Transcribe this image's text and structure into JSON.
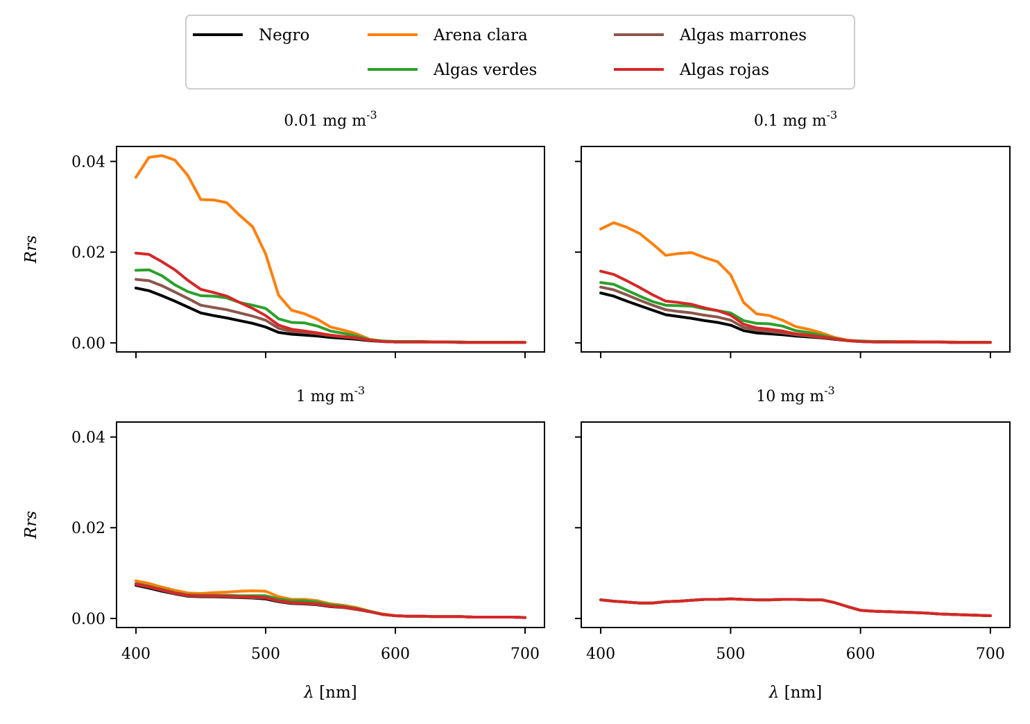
{
  "legend": {
    "entries": [
      {
        "name": "Negro",
        "color": "#000000"
      },
      {
        "name": "Arena clara",
        "color": "#ff7f0e"
      },
      {
        "name": "Algas marrones",
        "color": "#8c564b"
      },
      {
        "name": "Algas verdes",
        "color": "#2ca02c"
      },
      {
        "name": "Algas rojas",
        "color": "#d62728"
      }
    ]
  },
  "chart_data": [
    {
      "type": "line",
      "title": "0.01 mg m^-3",
      "xlabel": "",
      "ylabel": "Rrs",
      "xlim": [
        385,
        715
      ],
      "ylim": [
        -0.002,
        0.0433
      ],
      "xticks": [
        400,
        500,
        600,
        700
      ],
      "yticks": [
        "0.00",
        "0.02",
        "0.04"
      ],
      "x": [
        400,
        410,
        420,
        430,
        440,
        450,
        460,
        470,
        480,
        490,
        500,
        510,
        520,
        530,
        540,
        550,
        560,
        570,
        580,
        590,
        600,
        610,
        620,
        630,
        640,
        650,
        660,
        670,
        680,
        690,
        700
      ],
      "series": [
        {
          "name": "Negro",
          "color": "#000000",
          "values": [
            0.0121,
            0.0115,
            0.0104,
            0.0092,
            0.0079,
            0.0066,
            0.006,
            0.0055,
            0.0049,
            0.0043,
            0.0035,
            0.0023,
            0.0019,
            0.0017,
            0.0015,
            0.0012,
            0.001,
            0.0008,
            0.0005,
            0.0003,
            0.0002,
            0.0002,
            0.0002,
            0.0002,
            0.0002,
            0.0001,
            0.0001,
            0.0001,
            0.0001,
            0.0001,
            0.0001
          ]
        },
        {
          "name": "Arena clara",
          "color": "#ff7f0e",
          "values": [
            0.0365,
            0.0409,
            0.0413,
            0.0403,
            0.0369,
            0.0316,
            0.0315,
            0.0309,
            0.0281,
            0.0256,
            0.0196,
            0.0105,
            0.0072,
            0.0064,
            0.0052,
            0.0035,
            0.0028,
            0.002,
            0.0008,
            0.0004,
            0.0003,
            0.0003,
            0.0003,
            0.0002,
            0.0002,
            0.0002,
            0.0001,
            0.0001,
            0.0001,
            0.0001,
            0.0001
          ]
        },
        {
          "name": "Algas marrones",
          "color": "#8c564b",
          "values": [
            0.014,
            0.0137,
            0.0126,
            0.0112,
            0.0098,
            0.0083,
            0.0078,
            0.0073,
            0.0066,
            0.0059,
            0.005,
            0.0032,
            0.0025,
            0.0023,
            0.002,
            0.0016,
            0.0013,
            0.001,
            0.0006,
            0.0003,
            0.0002,
            0.0002,
            0.0002,
            0.0002,
            0.0002,
            0.0001,
            0.0001,
            0.0001,
            0.0001,
            0.0001,
            0.0001
          ]
        },
        {
          "name": "Algas verdes",
          "color": "#2ca02c",
          "values": [
            0.016,
            0.0161,
            0.0148,
            0.0128,
            0.0113,
            0.0104,
            0.0103,
            0.0099,
            0.0089,
            0.0083,
            0.0076,
            0.0053,
            0.0045,
            0.0044,
            0.0037,
            0.0026,
            0.0021,
            0.0015,
            0.0007,
            0.0004,
            0.0003,
            0.0003,
            0.0003,
            0.0002,
            0.0002,
            0.0002,
            0.0001,
            0.0001,
            0.0001,
            0.0001,
            0.0001
          ]
        },
        {
          "name": "Algas rojas",
          "color": "#d62728",
          "values": [
            0.0198,
            0.0195,
            0.0179,
            0.0161,
            0.0138,
            0.0118,
            0.0111,
            0.0103,
            0.0089,
            0.0076,
            0.006,
            0.0039,
            0.003,
            0.0026,
            0.0022,
            0.0017,
            0.0014,
            0.0011,
            0.0006,
            0.0003,
            0.0002,
            0.0002,
            0.0002,
            0.0002,
            0.0002,
            0.0001,
            0.0001,
            0.0001,
            0.0001,
            0.0001,
            0.0001
          ]
        }
      ]
    },
    {
      "type": "line",
      "title": "0.1 mg m^-3",
      "xlabel": "",
      "ylabel": "",
      "xlim": [
        385,
        715
      ],
      "ylim": [
        -0.002,
        0.0433
      ],
      "xticks": [
        400,
        500,
        600,
        700
      ],
      "yticks": [],
      "x": [
        400,
        410,
        420,
        430,
        440,
        450,
        460,
        470,
        480,
        490,
        500,
        510,
        520,
        530,
        540,
        550,
        560,
        570,
        580,
        590,
        600,
        610,
        620,
        630,
        640,
        650,
        660,
        670,
        680,
        690,
        700
      ],
      "series": [
        {
          "name": "Negro",
          "color": "#000000",
          "values": [
            0.011,
            0.0103,
            0.0092,
            0.0082,
            0.0072,
            0.0062,
            0.0058,
            0.0054,
            0.0049,
            0.0045,
            0.0039,
            0.0027,
            0.0022,
            0.002,
            0.0018,
            0.0015,
            0.0013,
            0.0011,
            0.0008,
            0.0005,
            0.0003,
            0.0002,
            0.0002,
            0.0002,
            0.0002,
            0.0002,
            0.0002,
            0.0001,
            0.0001,
            0.0001,
            0.0001
          ]
        },
        {
          "name": "Arena clara",
          "color": "#ff7f0e",
          "values": [
            0.0251,
            0.0265,
            0.0255,
            0.0241,
            0.0218,
            0.0193,
            0.0197,
            0.0199,
            0.0188,
            0.0179,
            0.015,
            0.0089,
            0.0064,
            0.006,
            0.005,
            0.0036,
            0.003,
            0.0022,
            0.0012,
            0.0006,
            0.0004,
            0.0003,
            0.0003,
            0.0003,
            0.0003,
            0.0002,
            0.0002,
            0.0002,
            0.0001,
            0.0001,
            0.0001
          ]
        },
        {
          "name": "Algas marrones",
          "color": "#8c564b",
          "values": [
            0.0123,
            0.0117,
            0.0106,
            0.0094,
            0.0083,
            0.0073,
            0.0069,
            0.0066,
            0.0061,
            0.0057,
            0.005,
            0.0034,
            0.0028,
            0.0025,
            0.0022,
            0.0018,
            0.0015,
            0.0012,
            0.0009,
            0.0005,
            0.0003,
            0.0002,
            0.0002,
            0.0002,
            0.0002,
            0.0002,
            0.0002,
            0.0001,
            0.0001,
            0.0001,
            0.0001
          ]
        },
        {
          "name": "Algas verdes",
          "color": "#2ca02c",
          "values": [
            0.0133,
            0.0129,
            0.0116,
            0.0103,
            0.0091,
            0.0083,
            0.0082,
            0.0081,
            0.0075,
            0.0071,
            0.0066,
            0.0049,
            0.0043,
            0.0042,
            0.0037,
            0.0027,
            0.0023,
            0.0017,
            0.001,
            0.0005,
            0.0004,
            0.0003,
            0.0003,
            0.0002,
            0.0002,
            0.0002,
            0.0002,
            0.0001,
            0.0001,
            0.0001,
            0.0001
          ]
        },
        {
          "name": "Algas rojas",
          "color": "#d62728",
          "values": [
            0.0158,
            0.0151,
            0.0137,
            0.0122,
            0.0106,
            0.0092,
            0.0089,
            0.0085,
            0.0077,
            0.0071,
            0.0061,
            0.0041,
            0.0033,
            0.003,
            0.0026,
            0.002,
            0.0017,
            0.0013,
            0.0009,
            0.0005,
            0.0003,
            0.0002,
            0.0002,
            0.0002,
            0.0002,
            0.0002,
            0.0002,
            0.0001,
            0.0001,
            0.0001,
            0.0001
          ]
        }
      ]
    },
    {
      "type": "line",
      "title": "1 mg m^-3",
      "xlabel": "λ [nm]",
      "ylabel": "Rrs",
      "xlim": [
        385,
        715
      ],
      "ylim": [
        -0.002,
        0.0433
      ],
      "xticks": [
        400,
        500,
        600,
        700
      ],
      "yticks": [
        "0.00",
        "0.02",
        "0.04"
      ],
      "x": [
        400,
        410,
        420,
        430,
        440,
        450,
        460,
        470,
        480,
        490,
        500,
        510,
        520,
        530,
        540,
        550,
        560,
        570,
        580,
        590,
        600,
        610,
        620,
        630,
        640,
        650,
        660,
        670,
        680,
        690,
        700
      ],
      "series": [
        {
          "name": "Negro",
          "color": "#000000",
          "values": [
            0.0073,
            0.0067,
            0.006,
            0.0054,
            0.0049,
            0.0048,
            0.0048,
            0.0047,
            0.0046,
            0.0045,
            0.0043,
            0.0037,
            0.0033,
            0.0032,
            0.003,
            0.0026,
            0.0024,
            0.002,
            0.0015,
            0.0009,
            0.0006,
            0.0005,
            0.0005,
            0.0004,
            0.0004,
            0.0004,
            0.0003,
            0.0003,
            0.0003,
            0.0003,
            0.0002
          ]
        },
        {
          "name": "Arena clara",
          "color": "#ff7f0e",
          "values": [
            0.0083,
            0.0077,
            0.0069,
            0.0062,
            0.0056,
            0.0055,
            0.0057,
            0.0058,
            0.006,
            0.0061,
            0.006,
            0.0048,
            0.0042,
            0.0042,
            0.0039,
            0.0032,
            0.0029,
            0.0024,
            0.0016,
            0.001,
            0.0006,
            0.0005,
            0.0005,
            0.0004,
            0.0004,
            0.0004,
            0.0003,
            0.0003,
            0.0003,
            0.0003,
            0.0002
          ]
        },
        {
          "name": "Algas marrones",
          "color": "#8c564b",
          "values": [
            0.0075,
            0.0069,
            0.0062,
            0.0055,
            0.005,
            0.0049,
            0.0049,
            0.0048,
            0.0047,
            0.0046,
            0.0045,
            0.0038,
            0.0034,
            0.0033,
            0.0031,
            0.0027,
            0.0024,
            0.002,
            0.0015,
            0.0009,
            0.0006,
            0.0005,
            0.0005,
            0.0004,
            0.0004,
            0.0004,
            0.0003,
            0.0003,
            0.0003,
            0.0003,
            0.0002
          ]
        },
        {
          "name": "Algas verdes",
          "color": "#2ca02c",
          "values": [
            0.0077,
            0.0071,
            0.0064,
            0.0057,
            0.0052,
            0.0051,
            0.0051,
            0.0051,
            0.005,
            0.005,
            0.005,
            0.0043,
            0.0039,
            0.0039,
            0.0036,
            0.003,
            0.0027,
            0.0022,
            0.0016,
            0.0009,
            0.0006,
            0.0005,
            0.0005,
            0.0004,
            0.0004,
            0.0004,
            0.0003,
            0.0003,
            0.0003,
            0.0003,
            0.0002
          ]
        },
        {
          "name": "Algas rojas",
          "color": "#d62728",
          "values": [
            0.0076,
            0.007,
            0.0063,
            0.0056,
            0.0051,
            0.005,
            0.005,
            0.0049,
            0.0048,
            0.0048,
            0.0046,
            0.0039,
            0.0035,
            0.0034,
            0.0032,
            0.0027,
            0.0025,
            0.0021,
            0.0015,
            0.0009,
            0.0006,
            0.0005,
            0.0005,
            0.0004,
            0.0004,
            0.0004,
            0.0003,
            0.0003,
            0.0003,
            0.0003,
            0.0002
          ]
        }
      ]
    },
    {
      "type": "line",
      "title": "10 mg m^-3",
      "xlabel": "λ [nm]",
      "ylabel": "",
      "xlim": [
        385,
        715
      ],
      "ylim": [
        -0.002,
        0.0433
      ],
      "xticks": [
        400,
        500,
        600,
        700
      ],
      "yticks": [],
      "x": [
        400,
        410,
        420,
        430,
        440,
        450,
        460,
        470,
        480,
        490,
        500,
        510,
        520,
        530,
        540,
        550,
        560,
        570,
        580,
        590,
        600,
        610,
        620,
        630,
        640,
        650,
        660,
        670,
        680,
        690,
        700
      ],
      "series": [
        {
          "name": "Negro",
          "color": "#000000",
          "values": [
            0.0041,
            0.0038,
            0.0036,
            0.0034,
            0.0034,
            0.0037,
            0.0038,
            0.004,
            0.0042,
            0.0042,
            0.0043,
            0.0042,
            0.0041,
            0.0041,
            0.0042,
            0.0042,
            0.0041,
            0.0041,
            0.0035,
            0.0026,
            0.0018,
            0.0016,
            0.0015,
            0.0014,
            0.0013,
            0.0012,
            0.001,
            0.0009,
            0.0008,
            0.0007,
            0.0006
          ]
        },
        {
          "name": "Arena clara",
          "color": "#ff7f0e",
          "values": [
            0.0041,
            0.0038,
            0.0036,
            0.0034,
            0.0034,
            0.0037,
            0.0038,
            0.004,
            0.0042,
            0.0042,
            0.0043,
            0.0042,
            0.0041,
            0.0041,
            0.0042,
            0.0042,
            0.0041,
            0.0041,
            0.0035,
            0.0026,
            0.0018,
            0.0016,
            0.0015,
            0.0014,
            0.0013,
            0.0012,
            0.001,
            0.0009,
            0.0008,
            0.0007,
            0.0006
          ]
        },
        {
          "name": "Algas marrones",
          "color": "#8c564b",
          "values": [
            0.0041,
            0.0038,
            0.0036,
            0.0034,
            0.0034,
            0.0037,
            0.0038,
            0.004,
            0.0042,
            0.0042,
            0.0043,
            0.0042,
            0.0041,
            0.0041,
            0.0042,
            0.0042,
            0.0041,
            0.0041,
            0.0035,
            0.0026,
            0.0018,
            0.0016,
            0.0015,
            0.0014,
            0.0013,
            0.0012,
            0.001,
            0.0009,
            0.0008,
            0.0007,
            0.0006
          ]
        },
        {
          "name": "Algas verdes",
          "color": "#2ca02c",
          "values": [
            0.0041,
            0.0038,
            0.0036,
            0.0034,
            0.0034,
            0.0037,
            0.0038,
            0.004,
            0.0042,
            0.0042,
            0.0043,
            0.0042,
            0.0041,
            0.0041,
            0.0042,
            0.0042,
            0.0041,
            0.0041,
            0.0035,
            0.0026,
            0.0018,
            0.0016,
            0.0015,
            0.0014,
            0.0013,
            0.0012,
            0.001,
            0.0009,
            0.0008,
            0.0007,
            0.0006
          ]
        },
        {
          "name": "Algas rojas",
          "color": "#d62728",
          "values": [
            0.0041,
            0.0038,
            0.0036,
            0.0034,
            0.0034,
            0.0037,
            0.0038,
            0.004,
            0.0042,
            0.0042,
            0.0043,
            0.0042,
            0.0041,
            0.0041,
            0.0042,
            0.0042,
            0.0041,
            0.0041,
            0.0035,
            0.0026,
            0.0018,
            0.0016,
            0.0015,
            0.0014,
            0.0013,
            0.0012,
            0.001,
            0.0009,
            0.0008,
            0.0007,
            0.0006
          ]
        }
      ]
    }
  ]
}
